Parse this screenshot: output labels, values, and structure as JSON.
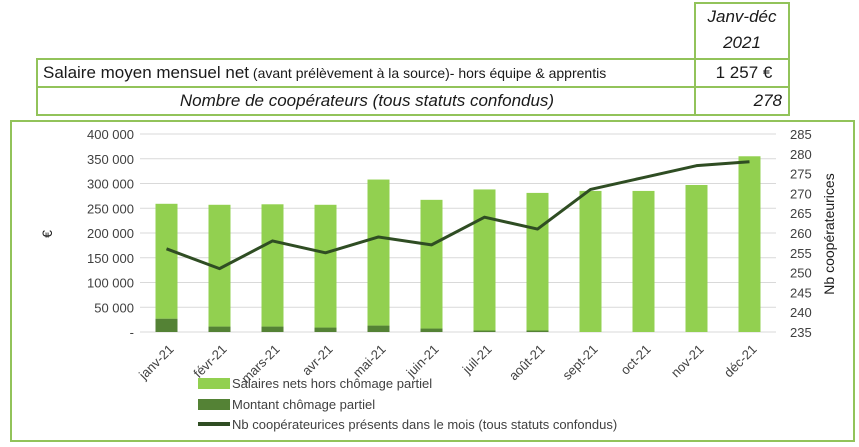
{
  "summary_table": {
    "period_header_line1": "Janv-déc",
    "period_header_line2": "2021",
    "row1_label_main": "Salaire moyen mensuel net",
    "row1_label_detail": " (avant prélèvement à la source)- hors équipe & apprentis",
    "row1_value": "1 257 €",
    "row2_label": "Nombre de coopérateurs (tous statuts confondus)",
    "row2_value": "278"
  },
  "colors": {
    "border": "#92c35a",
    "salary_bar": "#92d050",
    "chomage_bar": "#548235",
    "line": "#2f4d23"
  },
  "chart_data": {
    "type": "bar",
    "categories": [
      "janv-21",
      "févr-21",
      "mars-21",
      "avr-21",
      "mai-21",
      "juin-21",
      "juil-21",
      "août-21",
      "sept-21",
      "oct-21",
      "nov-21",
      "déc-21"
    ],
    "series": [
      {
        "name": "Montant chômage partiel",
        "kind": "stacked-bar",
        "axis": "left",
        "values": [
          27000,
          11000,
          11000,
          9000,
          13000,
          7000,
          3000,
          3000,
          0,
          0,
          0,
          0
        ]
      },
      {
        "name": "Salaires nets hors chômage partiel",
        "kind": "stacked-bar",
        "axis": "left",
        "values": [
          232000,
          246000,
          247000,
          248000,
          295000,
          260000,
          285000,
          278000,
          285000,
          285000,
          297000,
          355000
        ]
      },
      {
        "name": "Nb coopérateurices présents dans le mois (tous statuts confondus)",
        "kind": "line",
        "axis": "right",
        "values": [
          256,
          251,
          258,
          255,
          259,
          257,
          264,
          261,
          271,
          274,
          277,
          278
        ]
      }
    ],
    "legend_order": [
      "Salaires nets hors chômage partiel",
      "Montant chômage partiel",
      "Nb coopérateurices présents dans le mois (tous statuts confondus)"
    ],
    "ylabel": "€",
    "y2label": "Nb coopérateurices",
    "ylim": [
      0,
      400000
    ],
    "y2lim": [
      235,
      285
    ],
    "yticks": [
      "-",
      "50 000",
      "100 000",
      "150 000",
      "200 000",
      "250 000",
      "300 000",
      "350 000",
      "400 000"
    ],
    "y2ticks": [
      "235",
      "240",
      "245",
      "250",
      "255",
      "260",
      "265",
      "270",
      "275",
      "280",
      "285"
    ]
  }
}
